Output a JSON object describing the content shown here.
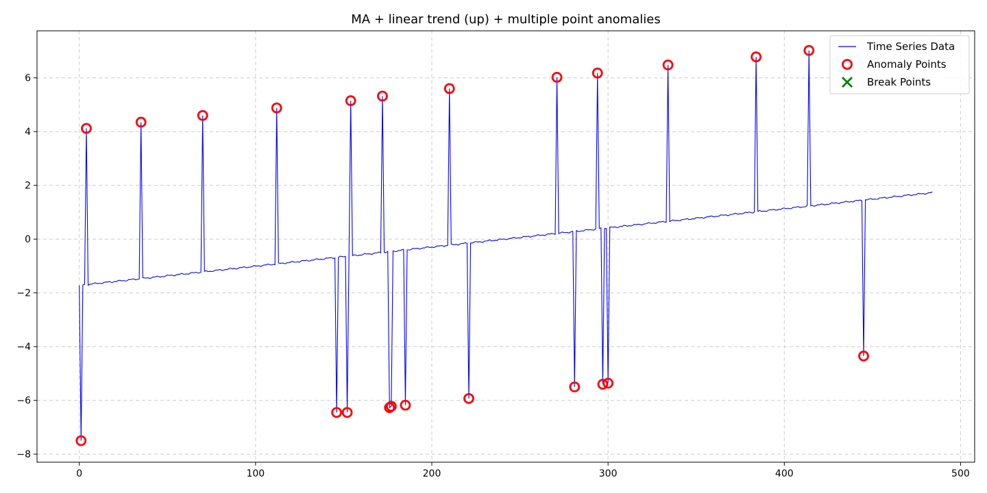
{
  "chart_data": {
    "type": "line",
    "title": "MA + linear trend (up) + multiple point anomalies",
    "xlabel": "",
    "ylabel": "",
    "xlim": [
      -24,
      508
    ],
    "ylim": [
      -8.3,
      7.75
    ],
    "x_ticks": [
      0,
      100,
      200,
      300,
      400,
      500
    ],
    "y_ticks": [
      -8,
      -6,
      -4,
      -2,
      0,
      2,
      4,
      6
    ],
    "grid": true,
    "legend_position": "top-right",
    "colors": {
      "series": "#0000ff",
      "anomaly": "#ff0000",
      "break": "#008000",
      "grid": "#cccccc"
    },
    "legend": [
      {
        "label": "Time Series Data",
        "marker": "line"
      },
      {
        "label": "Anomaly Points",
        "marker": "circle"
      },
      {
        "label": "Break Points",
        "marker": "x"
      }
    ],
    "series": [
      {
        "name": "Time Series Data",
        "trend_start": [
          0,
          -1.72
        ],
        "trend_end": [
          484,
          1.73
        ]
      }
    ],
    "anomaly_points": [
      {
        "x": 1,
        "y": -7.5
      },
      {
        "x": 4,
        "y": 4.12
      },
      {
        "x": 35,
        "y": 4.35
      },
      {
        "x": 70,
        "y": 4.6
      },
      {
        "x": 112,
        "y": 4.88
      },
      {
        "x": 146,
        "y": -6.45
      },
      {
        "x": 152,
        "y": -6.45
      },
      {
        "x": 154,
        "y": 5.15
      },
      {
        "x": 172,
        "y": 5.32
      },
      {
        "x": 176,
        "y": -6.27
      },
      {
        "x": 177,
        "y": -6.22
      },
      {
        "x": 185,
        "y": -6.18
      },
      {
        "x": 210,
        "y": 5.6
      },
      {
        "x": 221,
        "y": -5.93
      },
      {
        "x": 271,
        "y": 6.02
      },
      {
        "x": 281,
        "y": -5.5
      },
      {
        "x": 294,
        "y": 6.18
      },
      {
        "x": 297,
        "y": -5.4
      },
      {
        "x": 300,
        "y": -5.36
      },
      {
        "x": 334,
        "y": 6.48
      },
      {
        "x": 384,
        "y": 6.78
      },
      {
        "x": 414,
        "y": 7.02
      },
      {
        "x": 445,
        "y": -4.35
      }
    ],
    "break_points": []
  }
}
